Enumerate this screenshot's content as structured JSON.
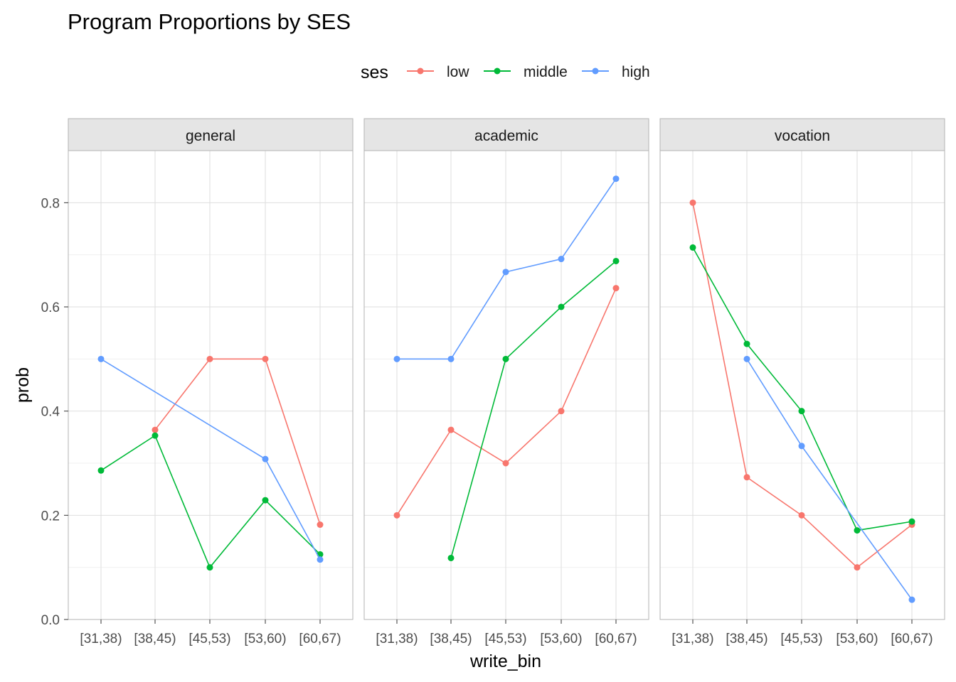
{
  "chart_data": {
    "type": "line",
    "title": "Program Proportions by SES",
    "xlabel": "write_bin",
    "ylabel": "prob",
    "ylim": [
      0,
      0.9
    ],
    "y_ticks": [
      0.0,
      0.2,
      0.4,
      0.6,
      0.8
    ],
    "y_tick_labels": [
      "0.0",
      "0.2",
      "0.4",
      "0.6",
      "0.8"
    ],
    "categories": [
      "[31,38)",
      "[38,45)",
      "[45,53)",
      "[53,60)",
      "[60,67)"
    ],
    "legend": {
      "title": "ses",
      "position": "top",
      "entries": [
        "low",
        "middle",
        "high"
      ]
    },
    "series_colors": {
      "low": "#F8766D",
      "middle": "#00BA38",
      "high": "#619CFF"
    },
    "panels": [
      {
        "label": "general",
        "series": [
          {
            "name": "low",
            "values": [
              null,
              0.364,
              0.5,
              0.5,
              0.182
            ]
          },
          {
            "name": "middle",
            "values": [
              0.286,
              0.353,
              0.1,
              0.229,
              0.125
            ]
          },
          {
            "name": "high",
            "values": [
              0.5,
              null,
              null,
              0.308,
              0.115
            ]
          }
        ]
      },
      {
        "label": "academic",
        "series": [
          {
            "name": "low",
            "values": [
              0.2,
              0.364,
              0.3,
              0.4,
              0.636
            ]
          },
          {
            "name": "middle",
            "values": [
              null,
              0.118,
              0.5,
              0.6,
              0.688
            ]
          },
          {
            "name": "high",
            "values": [
              0.5,
              0.5,
              0.667,
              0.692,
              0.846
            ]
          }
        ]
      },
      {
        "label": "vocation",
        "series": [
          {
            "name": "low",
            "values": [
              0.8,
              0.273,
              0.2,
              0.1,
              0.182
            ]
          },
          {
            "name": "middle",
            "values": [
              0.714,
              0.529,
              0.4,
              0.171,
              0.188
            ]
          },
          {
            "name": "high",
            "values": [
              null,
              0.5,
              0.333,
              null,
              0.038
            ]
          }
        ]
      }
    ]
  }
}
